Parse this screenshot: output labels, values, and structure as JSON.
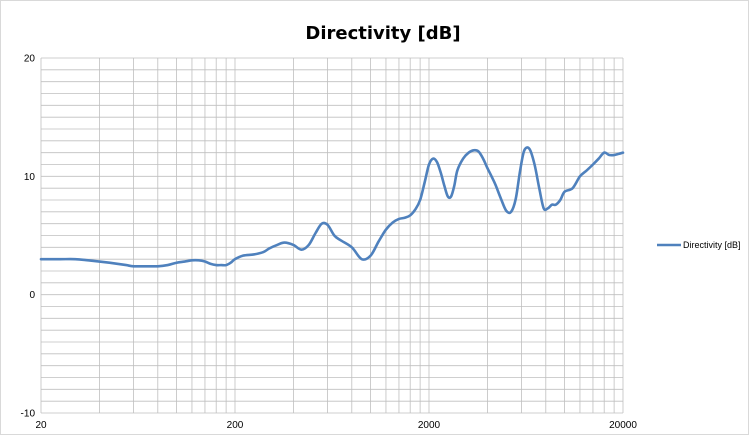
{
  "chart_data": {
    "type": "line",
    "title": "Directivity [dB]",
    "xlabel": "",
    "ylabel": "",
    "x_scale": "log",
    "xlim": [
      20,
      20000
    ],
    "ylim": [
      -10,
      20
    ],
    "x_ticks": [
      "20",
      "200",
      "2000",
      "20000"
    ],
    "y_ticks": [
      "-10",
      "0",
      "10",
      "20"
    ],
    "grid": true,
    "legend_position": "right",
    "colors": {
      "series": "#4f81bd",
      "grid": "#bfbfbf",
      "frame": "#d9d9d9"
    },
    "series": [
      {
        "name": "Directivity [dB]",
        "x": [
          20,
          25,
          30,
          35,
          40,
          45,
          50,
          55,
          60,
          70,
          80,
          90,
          100,
          110,
          120,
          130,
          140,
          150,
          160,
          170,
          180,
          190,
          200,
          220,
          250,
          280,
          300,
          330,
          360,
          400,
          440,
          480,
          520,
          560,
          600,
          650,
          700,
          800,
          900,
          1000,
          1100,
          1200,
          1300,
          1400,
          1500,
          1600,
          1700,
          1800,
          1900,
          2000,
          2100,
          2200,
          2300,
          2400,
          2500,
          2600,
          2700,
          2800,
          3000,
          3200,
          3400,
          3600,
          3800,
          4000,
          4200,
          4400,
          4700,
          5000,
          5300,
          5600,
          5900,
          6200,
          6600,
          7000,
          7400,
          7800,
          8200,
          8600,
          9000,
          9500,
          10000,
          11000,
          12000,
          13000,
          14000,
          15000,
          16000,
          17000,
          18000,
          19000,
          20000
        ],
        "values": [
          3.0,
          3.0,
          3.0,
          2.9,
          2.8,
          2.7,
          2.6,
          2.5,
          2.4,
          2.4,
          2.4,
          2.5,
          2.7,
          2.8,
          2.9,
          2.9,
          2.8,
          2.6,
          2.5,
          2.5,
          2.5,
          2.7,
          3.0,
          3.3,
          3.4,
          3.6,
          3.9,
          4.2,
          4.4,
          4.2,
          3.8,
          4.2,
          5.2,
          6.0,
          5.9,
          5.0,
          4.6,
          4.0,
          3.0,
          3.3,
          4.5,
          5.5,
          6.1,
          6.4,
          6.5,
          6.7,
          7.2,
          8.0,
          9.5,
          11.0,
          11.5,
          11.2,
          10.3,
          9.2,
          8.3,
          8.3,
          9.2,
          10.5,
          11.5,
          12.0,
          12.2,
          12.1,
          11.5,
          10.7,
          10.0,
          9.3,
          8.1,
          7.1,
          7.0,
          8.1,
          10.5,
          12.2,
          12.3,
          11.0,
          9.0,
          7.3,
          7.3,
          7.6,
          7.6,
          8.0,
          8.7,
          9.0,
          10.0,
          10.5,
          11.0,
          11.5,
          12.0,
          11.8,
          11.8,
          11.9,
          12.0
        ]
      }
    ]
  }
}
